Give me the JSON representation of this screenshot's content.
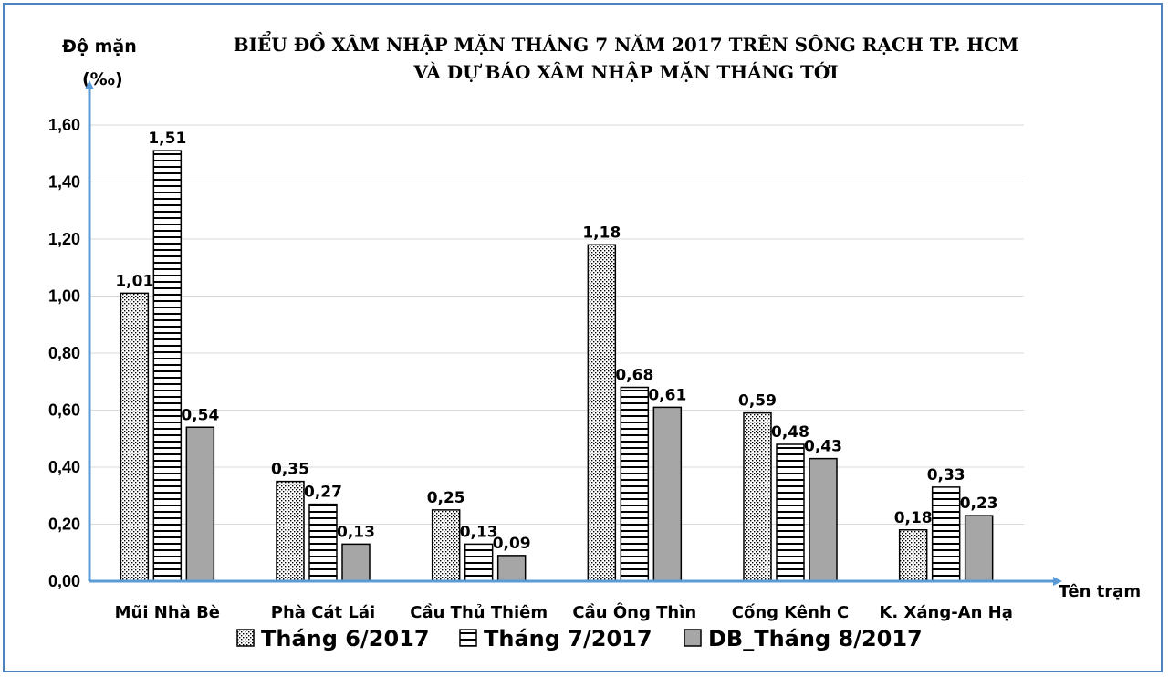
{
  "chart_data": {
    "type": "bar",
    "title_lines": [
      "BIỂU ĐỒ XÂM NHẬP MẶN THÁNG 7 NĂM 2017 TRÊN SÔNG RẠCH TP. HCM",
      "VÀ DỰ BÁO XÂM NHẬP MẶN THÁNG TỚI"
    ],
    "ylabel_lines": [
      "Độ mặn",
      "(‰)"
    ],
    "xlabel": "Tên trạm",
    "ylim": [
      0,
      1.6
    ],
    "yticks": [
      "0,00",
      "0,20",
      "0,40",
      "0,60",
      "0,80",
      "1,00",
      "1,20",
      "1,40",
      "1,60"
    ],
    "grid": true,
    "legend_position": "bottom",
    "categories": [
      "Mũi Nhà Bè",
      "Phà Cát Lái",
      "Cầu Thủ Thiêm",
      "Cầu Ông Thìn",
      "Cống Kênh C",
      "K. Xáng-An Hạ"
    ],
    "series": [
      {
        "name": "Tháng 6/2017",
        "pattern": "dotted",
        "values": [
          1.01,
          0.35,
          0.25,
          1.18,
          0.59,
          0.18
        ],
        "labels": [
          "1,01",
          "0,35",
          "0,25",
          "1,18",
          "0,59",
          "0,18"
        ]
      },
      {
        "name": "Tháng 7/2017",
        "pattern": "horizontal-stripes",
        "values": [
          1.51,
          0.27,
          0.13,
          0.68,
          0.48,
          0.33
        ],
        "labels": [
          "1,51",
          "0,27",
          "0,13",
          "0,68",
          "0,48",
          "0,33"
        ]
      },
      {
        "name": "DB_Tháng 8/2017",
        "pattern": "solid-gray",
        "values": [
          0.54,
          0.13,
          0.09,
          0.61,
          0.43,
          0.23
        ],
        "labels": [
          "0,54",
          "0,13",
          "0,09",
          "0,61",
          "0,43",
          "0,23"
        ]
      }
    ],
    "colors": {
      "axis": "#5b9bd5",
      "grid": "#d9d9d9",
      "bar_outline": "#000000",
      "solid_fill": "#a6a6a6",
      "frame": "#4f81bd"
    }
  }
}
